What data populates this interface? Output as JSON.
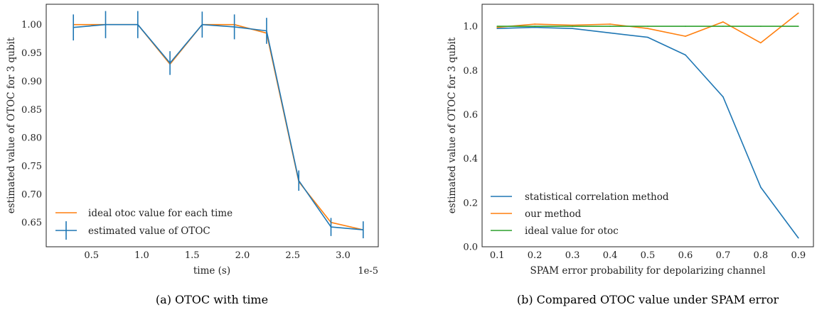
{
  "chart_data": [
    {
      "type": "line",
      "title": "",
      "caption": "(a) OTOC with time",
      "xlabel": "time (s)",
      "ylabel": "estimated value of OTOC for 3 qubit",
      "x_offset_label": "1e-5",
      "x": [
        0.32,
        0.64,
        0.96,
        1.28,
        1.6,
        1.92,
        2.24,
        2.56,
        2.88,
        3.2
      ],
      "xlim": [
        0.05,
        3.35
      ],
      "ylim": [
        0.607,
        1.036
      ],
      "xticks": [
        0.5,
        1.0,
        1.5,
        2.0,
        2.5,
        3.0
      ],
      "xtick_labels": [
        "0.5",
        "1.0",
        "1.5",
        "2.0",
        "2.5",
        "3.0"
      ],
      "yticks": [
        0.65,
        0.7,
        0.75,
        0.8,
        0.85,
        0.9,
        0.95,
        1.0
      ],
      "ytick_labels": [
        "0.65",
        "0.70",
        "0.75",
        "0.80",
        "0.85",
        "0.90",
        "0.95",
        "1.00"
      ],
      "grid": false,
      "legend_position": "lower-left",
      "series": [
        {
          "name": "ideal otoc value for each time",
          "color": "#ff7f0e",
          "values": [
            1.0,
            1.0,
            1.0,
            0.93,
            1.0,
            1.0,
            0.985,
            0.722,
            0.65,
            0.637
          ]
        },
        {
          "name": "estimated value of OTOC",
          "color": "#1f77b4",
          "values": [
            0.995,
            1.0,
            1.0,
            0.932,
            1.0,
            0.996,
            0.989,
            0.724,
            0.642,
            0.637
          ],
          "errors": [
            0.023,
            0.024,
            0.024,
            0.021,
            0.023,
            0.022,
            0.023,
            0.018,
            0.016,
            0.015
          ]
        }
      ]
    },
    {
      "type": "line",
      "title": "",
      "caption": "(b) Compared OTOC value under SPAM error",
      "xlabel": "SPAM error probability for depolarizing channel",
      "ylabel": "estimated value of OTOC for 3 qubit",
      "x": [
        0.1,
        0.2,
        0.3,
        0.4,
        0.5,
        0.6,
        0.7,
        0.8,
        0.9
      ],
      "xlim": [
        0.06,
        0.94
      ],
      "ylim": [
        0.0,
        1.1
      ],
      "xticks": [
        0.1,
        0.2,
        0.3,
        0.4,
        0.5,
        0.6,
        0.7,
        0.8,
        0.9
      ],
      "xtick_labels": [
        "0.1",
        "0.2",
        "0.3",
        "0.4",
        "0.5",
        "0.6",
        "0.7",
        "0.8",
        "0.9"
      ],
      "yticks": [
        0.0,
        0.2,
        0.4,
        0.6,
        0.8,
        1.0
      ],
      "ytick_labels": [
        "0.0",
        "0.2",
        "0.4",
        "0.6",
        "0.8",
        "1.0"
      ],
      "grid": false,
      "legend_position": "lower-left",
      "series": [
        {
          "name": "statistical correlation method",
          "color": "#1f77b4",
          "values": [
            0.99,
            0.995,
            0.99,
            0.97,
            0.95,
            0.87,
            0.68,
            0.27,
            0.04
          ]
        },
        {
          "name": "our method",
          "color": "#ff7f0e",
          "values": [
            0.995,
            1.01,
            1.005,
            1.01,
            0.99,
            0.955,
            1.02,
            0.925,
            1.06
          ]
        },
        {
          "name": "ideal value for otoc",
          "color": "#2ca02c",
          "values": [
            1.0,
            1.0,
            1.0,
            1.0,
            1.0,
            1.0,
            1.0,
            1.0,
            1.0
          ]
        }
      ]
    }
  ]
}
